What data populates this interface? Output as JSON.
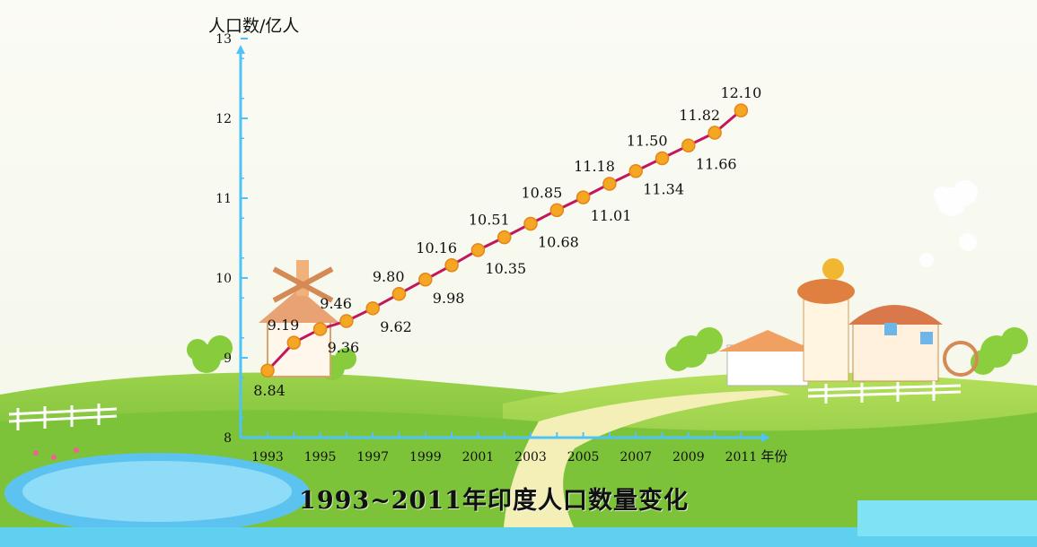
{
  "chart_data": {
    "type": "line",
    "title": "1993~2011年印度人口数量变化",
    "ylabel": "人口数/亿人",
    "xlabel": "年份",
    "ylim": [
      8,
      13
    ],
    "yticks": [
      "8",
      "9",
      "10",
      "11",
      "12",
      "13"
    ],
    "xticks": [
      "1993",
      "1995",
      "1997",
      "1999",
      "2001",
      "2003",
      "2005",
      "2007",
      "2009",
      "2011"
    ],
    "x": [
      1993,
      1994,
      1995,
      1996,
      1997,
      1998,
      1999,
      2000,
      2001,
      2002,
      2003,
      2004,
      2005,
      2006,
      2007,
      2008,
      2009,
      2010,
      2011
    ],
    "values": [
      8.84,
      9.19,
      9.36,
      9.46,
      9.62,
      9.8,
      9.98,
      10.16,
      10.35,
      10.51,
      10.68,
      10.85,
      11.01,
      11.18,
      11.34,
      11.5,
      11.66,
      11.82,
      12.1
    ],
    "labels": [
      "8.84",
      "9.19",
      "9.36",
      "9.46",
      "9.62",
      "9.80",
      "9.98",
      "10.16",
      "10.35",
      "10.51",
      "10.68",
      "10.85",
      "11.01",
      "11.18",
      "11.34",
      "11.50",
      "11.66",
      "11.82",
      "12.10"
    ],
    "line_color": "#c2185b",
    "marker_color": "#f5a623",
    "axis_color": "#4fc3f7",
    "grid": false
  }
}
